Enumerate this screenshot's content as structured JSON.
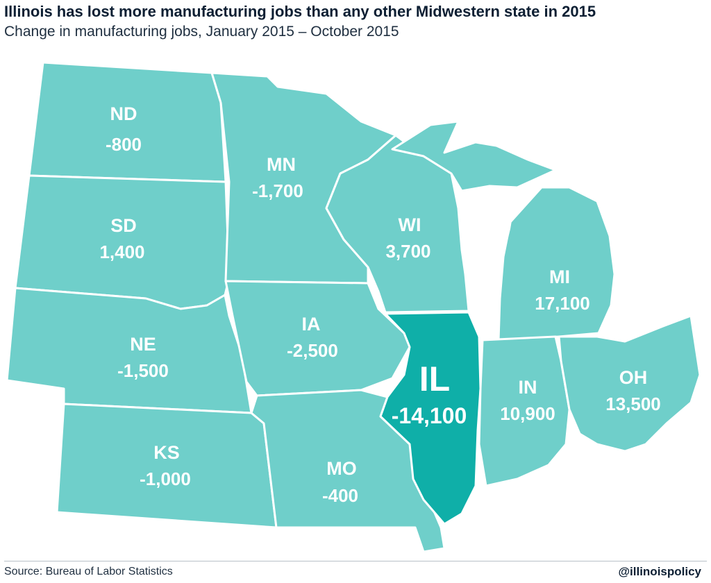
{
  "header": {
    "title": "Illinois has lost more manufacturing jobs than any other Midwestern state in 2015",
    "subtitle": "Change in manufacturing jobs, January 2015 – October 2015"
  },
  "map": {
    "highlight_color": "#0fafa8",
    "base_color": "#6fcfca",
    "states": {
      "nd": {
        "abbr": "ND",
        "value": "-800"
      },
      "sd": {
        "abbr": "SD",
        "value": "1,400"
      },
      "ne": {
        "abbr": "NE",
        "value": "-1,500"
      },
      "ks": {
        "abbr": "KS",
        "value": "-1,000"
      },
      "mn": {
        "abbr": "MN",
        "value": "-1,700"
      },
      "ia": {
        "abbr": "IA",
        "value": "-2,500"
      },
      "mo": {
        "abbr": "MO",
        "value": "-400"
      },
      "wi": {
        "abbr": "WI",
        "value": "3,700"
      },
      "il": {
        "abbr": "IL",
        "value": "-14,100"
      },
      "mi": {
        "abbr": "MI",
        "value": "17,100"
      },
      "in": {
        "abbr": "IN",
        "value": "10,900"
      },
      "oh": {
        "abbr": "OH",
        "value": "13,500"
      }
    }
  },
  "footer": {
    "source": "Source: Bureau of Labor Statistics",
    "handle": "@illinoispolicy"
  }
}
